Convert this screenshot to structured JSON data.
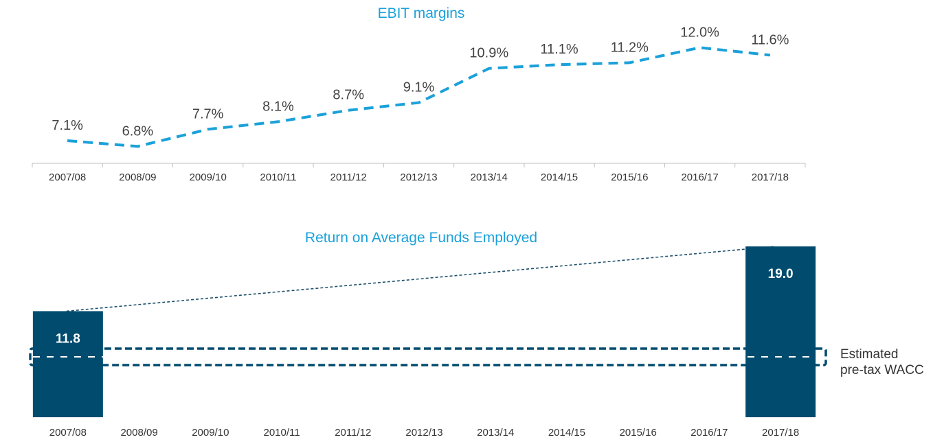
{
  "chart_data": [
    {
      "type": "line",
      "title": "EBIT margins",
      "xlabel": "",
      "ylabel": "",
      "categories": [
        "2007/08",
        "2008/09",
        "2009/10",
        "2010/11",
        "2011/12",
        "2012/13",
        "2013/14",
        "2014/15",
        "2015/16",
        "2016/17",
        "2017/18"
      ],
      "values": [
        7.1,
        6.8,
        7.7,
        8.1,
        8.7,
        9.1,
        10.9,
        11.1,
        11.2,
        12.0,
        11.6
      ],
      "labels": [
        "7.1%",
        "6.8%",
        "7.7%",
        "8.1%",
        "8.7%",
        "9.1%",
        "10.9%",
        "11.1%",
        "11.2%",
        "12.0%",
        "11.6%"
      ],
      "line_style": "dashed",
      "color": "#1BA1DA",
      "grid": false
    },
    {
      "type": "bar",
      "title": "Return on Average Funds Employed",
      "xlabel": "",
      "ylabel": "",
      "categories": [
        "2007/08",
        "2008/09",
        "2009/10",
        "2010/11",
        "2011/12",
        "2012/13",
        "2013/14",
        "2014/15",
        "2015/16",
        "2016/17",
        "2017/18"
      ],
      "values": [
        11.8,
        null,
        null,
        null,
        null,
        null,
        null,
        null,
        null,
        null,
        19.0
      ],
      "labels": [
        "11.8",
        "",
        "",
        "",
        "",
        "",
        "",
        "",
        "",
        "",
        "19.0"
      ],
      "color": "#004B6E",
      "trend_line": "dotted, 2007/08 to 2017/18",
      "wacc_band_label": [
        "Estimated",
        "pre-tax WACC"
      ],
      "grid": false
    }
  ],
  "colors": {
    "line": "#1BA1DA",
    "bar": "#004B6E",
    "title": "#1BA1DA"
  }
}
